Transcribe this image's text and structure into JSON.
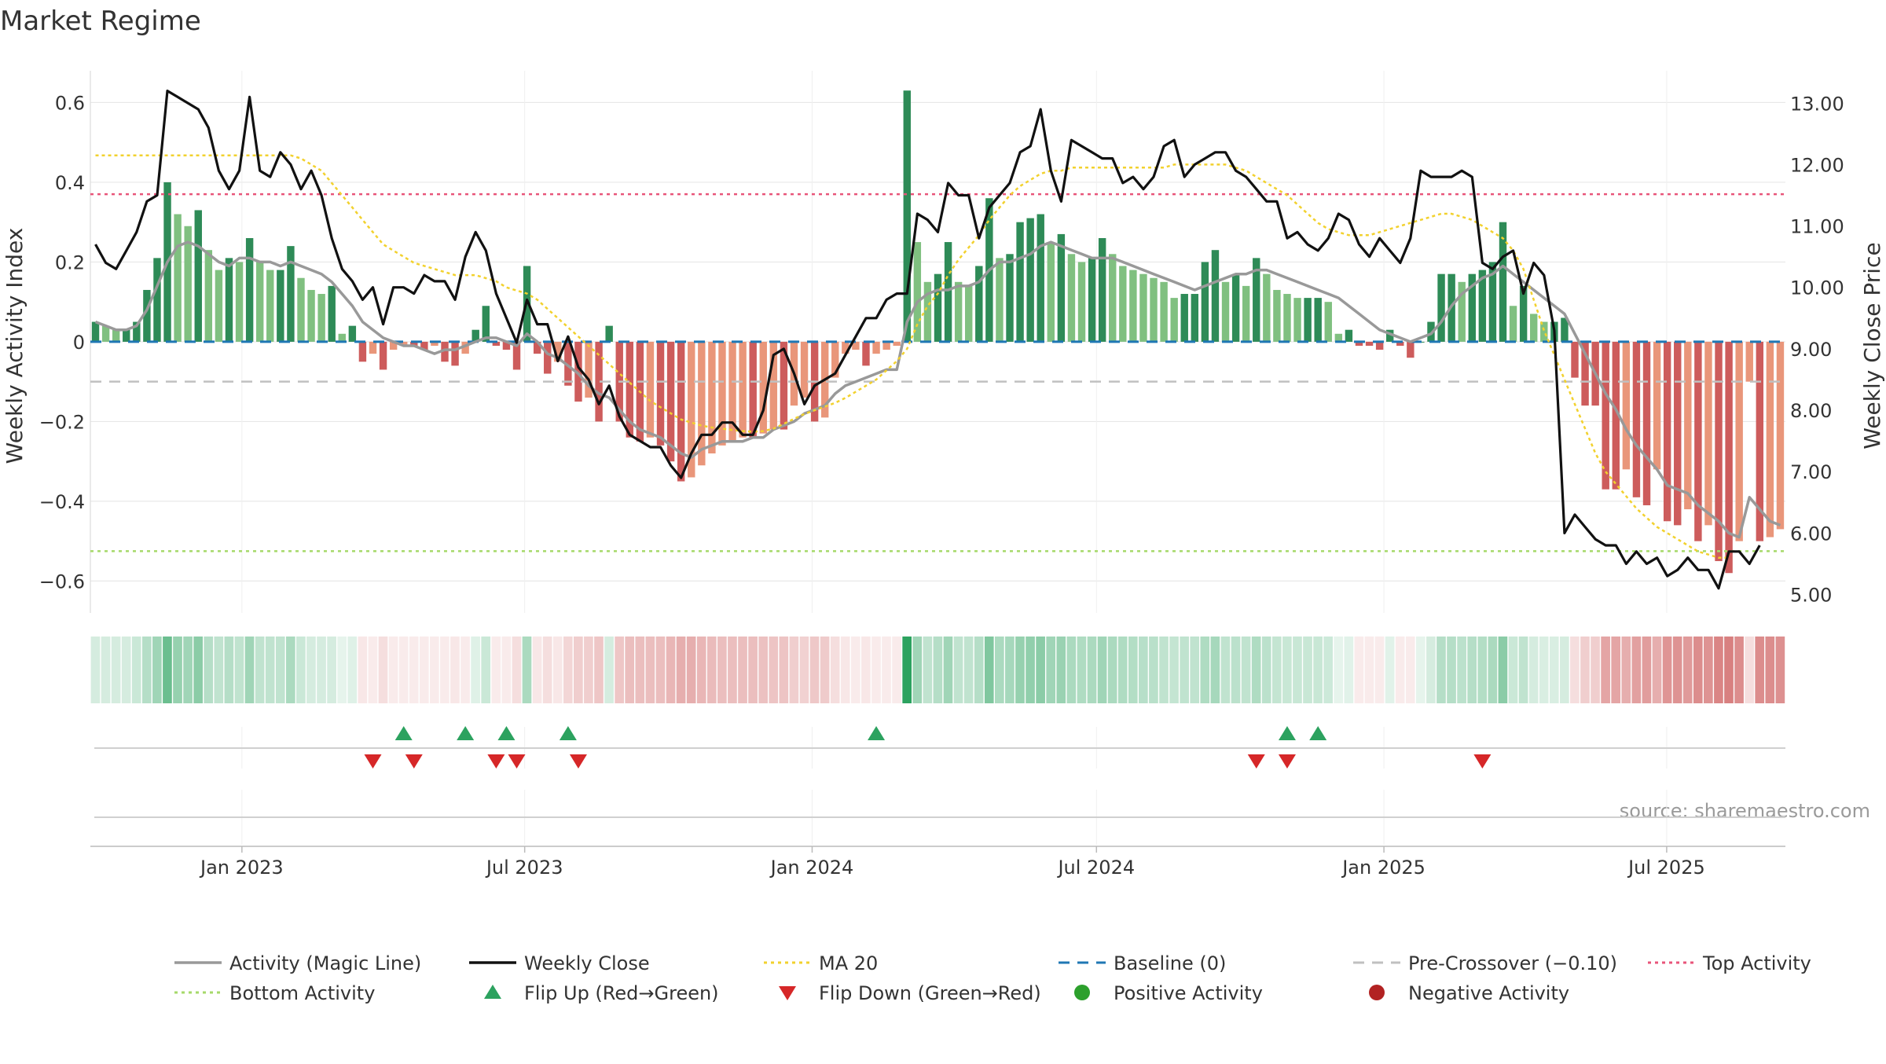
{
  "title": "Market Regime",
  "source_text": "source: sharemaestro.com",
  "colors": {
    "strong_pos": "#2e8b57",
    "weak_pos": "#80c080",
    "strong_neg": "#cd5c5c",
    "weak_neg": "#e9967a",
    "magic_line": "#999999",
    "close_line": "#111111",
    "ma20": "#f2d12e",
    "baseline": "#1f77b4",
    "precross": "#c0c0c0",
    "top": "#e8557a",
    "bottom": "#a6d96a",
    "flip_up": "#2ca25f",
    "flip_down": "#d62728",
    "pos_dot": "#2ca02c",
    "neg_dot": "#b22222"
  },
  "chart_data": {
    "type": "bar",
    "title": "Market Regime",
    "ylabel_left": "Weekly Activity Index",
    "ylabel_right": "Weekly Close Price",
    "ylim_left": [
      -0.68,
      0.66
    ],
    "ylim_right": [
      4.7,
      13.4
    ],
    "yticks_left": [
      "0.6",
      "0.4",
      "0.2",
      "0",
      "−0.2",
      "−0.4",
      "−0.6"
    ],
    "ytick_values_left": [
      0.6,
      0.4,
      0.2,
      0,
      -0.2,
      -0.4,
      -0.6
    ],
    "yticks_right": [
      "13.00",
      "12.00",
      "11.00",
      "10.00",
      "9.00",
      "8.00",
      "7.00",
      "6.00",
      "5.00"
    ],
    "ytick_values_right": [
      13,
      12,
      11,
      10,
      9,
      8,
      7,
      6,
      5
    ],
    "x_start": "2022-09-26",
    "x_end": "2025-09-15",
    "x_ticks": [
      {
        "label": "Jan 2023",
        "date": "2023-01-01"
      },
      {
        "label": "Jul 2023",
        "date": "2023-07-01"
      },
      {
        "label": "Jan 2024",
        "date": "2024-01-01"
      },
      {
        "label": "Jul 2024",
        "date": "2024-07-01"
      },
      {
        "label": "Jan 2025",
        "date": "2025-01-01"
      },
      {
        "label": "Jul 2025",
        "date": "2025-07-01"
      }
    ],
    "reference_lines": {
      "baseline": 0,
      "pre_crossover": -0.1,
      "top_activity": 0.37,
      "bottom_activity": -0.525
    },
    "activity": [
      0.05,
      0.04,
      0.03,
      0.03,
      0.05,
      0.13,
      0.21,
      0.4,
      0.32,
      0.29,
      0.33,
      0.23,
      0.18,
      0.21,
      0.2,
      0.26,
      0.2,
      0.18,
      0.18,
      0.24,
      0.16,
      0.13,
      0.12,
      0.14,
      0.02,
      0.04,
      -0.05,
      -0.03,
      -0.07,
      -0.02,
      -0.01,
      -0.01,
      -0.02,
      -0.01,
      -0.05,
      -0.06,
      -0.03,
      0.03,
      0.09,
      -0.01,
      -0.02,
      -0.07,
      0.19,
      -0.03,
      -0.08,
      -0.05,
      -0.11,
      -0.15,
      -0.14,
      -0.2,
      0.04,
      -0.2,
      -0.24,
      -0.25,
      -0.24,
      -0.26,
      -0.3,
      -0.35,
      -0.34,
      -0.31,
      -0.28,
      -0.26,
      -0.25,
      -0.24,
      -0.24,
      -0.23,
      -0.22,
      -0.22,
      -0.16,
      -0.14,
      -0.2,
      -0.19,
      -0.09,
      -0.03,
      -0.02,
      -0.06,
      -0.03,
      -0.02,
      -0.01,
      0.63,
      0.25,
      0.15,
      0.17,
      0.25,
      0.15,
      0.14,
      0.19,
      0.36,
      0.21,
      0.22,
      0.3,
      0.31,
      0.32,
      0.25,
      0.27,
      0.22,
      0.2,
      0.21,
      0.26,
      0.22,
      0.19,
      0.18,
      0.17,
      0.16,
      0.15,
      0.11,
      0.12,
      0.12,
      0.2,
      0.23,
      0.15,
      0.17,
      0.14,
      0.21,
      0.17,
      0.13,
      0.12,
      0.11,
      0.11,
      0.11,
      0.1,
      0.02,
      0.03,
      -0.01,
      -0.01,
      -0.02,
      0.03,
      -0.01,
      -0.04,
      0.0,
      0.05,
      0.17,
      0.17,
      0.15,
      0.17,
      0.18,
      0.2,
      0.3,
      0.09,
      0.14,
      0.07,
      0.05,
      0.05,
      0.06,
      -0.09,
      -0.16,
      -0.16,
      -0.37,
      -0.37,
      -0.32,
      -0.39,
      -0.41,
      -0.32,
      -0.45,
      -0.46,
      -0.42,
      -0.5,
      -0.46,
      -0.55,
      -0.58,
      -0.5,
      -0.1,
      -0.5,
      -0.49,
      -0.47
    ],
    "magic_line": [
      0.05,
      0.04,
      0.03,
      0.03,
      0.04,
      0.08,
      0.14,
      0.2,
      0.24,
      0.25,
      0.24,
      0.22,
      0.2,
      0.19,
      0.21,
      0.21,
      0.2,
      0.2,
      0.19,
      0.2,
      0.19,
      0.18,
      0.17,
      0.15,
      0.12,
      0.09,
      0.05,
      0.03,
      0.01,
      0.0,
      -0.01,
      -0.01,
      -0.02,
      -0.03,
      -0.02,
      -0.02,
      -0.01,
      0.0,
      0.01,
      0.01,
      0.0,
      -0.01,
      0.02,
      0.0,
      -0.03,
      -0.04,
      -0.06,
      -0.08,
      -0.11,
      -0.13,
      -0.14,
      -0.17,
      -0.2,
      -0.22,
      -0.23,
      -0.24,
      -0.26,
      -0.28,
      -0.29,
      -0.27,
      -0.26,
      -0.25,
      -0.25,
      -0.25,
      -0.24,
      -0.24,
      -0.22,
      -0.21,
      -0.2,
      -0.18,
      -0.17,
      -0.16,
      -0.13,
      -0.11,
      -0.1,
      -0.09,
      -0.08,
      -0.07,
      -0.07,
      0.05,
      0.1,
      0.12,
      0.13,
      0.13,
      0.14,
      0.14,
      0.15,
      0.18,
      0.2,
      0.2,
      0.21,
      0.22,
      0.24,
      0.25,
      0.24,
      0.23,
      0.22,
      0.21,
      0.21,
      0.21,
      0.2,
      0.19,
      0.18,
      0.17,
      0.16,
      0.15,
      0.14,
      0.13,
      0.14,
      0.15,
      0.16,
      0.17,
      0.17,
      0.18,
      0.18,
      0.17,
      0.16,
      0.15,
      0.14,
      0.13,
      0.12,
      0.11,
      0.09,
      0.07,
      0.05,
      0.03,
      0.02,
      0.01,
      0.0,
      0.01,
      0.02,
      0.05,
      0.09,
      0.12,
      0.14,
      0.16,
      0.17,
      0.19,
      0.17,
      0.15,
      0.13,
      0.11,
      0.09,
      0.07,
      0.02,
      -0.03,
      -0.08,
      -0.13,
      -0.17,
      -0.22,
      -0.26,
      -0.29,
      -0.32,
      -0.36,
      -0.37,
      -0.38,
      -0.41,
      -0.43,
      -0.45,
      -0.48,
      -0.49,
      -0.39,
      -0.42,
      -0.45,
      -0.46
    ],
    "weekly_close": [
      10.7,
      10.4,
      10.3,
      10.6,
      10.9,
      11.4,
      11.5,
      13.2,
      13.1,
      13.0,
      12.9,
      12.6,
      11.9,
      11.6,
      11.9,
      13.1,
      11.9,
      11.8,
      12.2,
      12.0,
      11.6,
      11.9,
      11.5,
      10.8,
      10.3,
      10.1,
      9.8,
      10.0,
      9.4,
      10.0,
      10.0,
      9.9,
      10.2,
      10.1,
      10.1,
      9.8,
      10.5,
      10.9,
      10.6,
      9.9,
      9.5,
      9.1,
      9.8,
      9.4,
      9.4,
      8.8,
      9.2,
      8.7,
      8.5,
      8.1,
      8.4,
      7.9,
      7.6,
      7.5,
      7.4,
      7.4,
      7.1,
      6.9,
      7.3,
      7.6,
      7.6,
      7.8,
      7.8,
      7.6,
      7.6,
      8.0,
      8.9,
      9.0,
      8.6,
      8.1,
      8.4,
      8.5,
      8.6,
      8.9,
      9.2,
      9.5,
      9.5,
      9.8,
      9.9,
      9.9,
      11.2,
      11.1,
      10.9,
      11.7,
      11.5,
      11.5,
      10.8,
      11.3,
      11.5,
      11.7,
      12.2,
      12.3,
      12.9,
      11.9,
      11.4,
      12.4,
      12.3,
      12.2,
      12.1,
      12.1,
      11.7,
      11.8,
      11.6,
      11.8,
      12.3,
      12.4,
      11.8,
      12.0,
      12.1,
      12.2,
      12.2,
      11.9,
      11.8,
      11.6,
      11.4,
      11.4,
      10.8,
      10.9,
      10.7,
      10.6,
      10.8,
      11.2,
      11.1,
      10.7,
      10.5,
      10.8,
      10.6,
      10.4,
      10.8,
      11.9,
      11.8,
      11.8,
      11.8,
      11.9,
      11.8,
      10.4,
      10.3,
      10.5,
      10.6,
      9.9,
      10.4,
      10.2,
      9.3,
      6.0,
      6.3,
      6.1,
      5.9,
      5.8,
      5.8,
      5.5,
      5.7,
      5.5,
      5.6,
      5.3,
      5.4,
      5.6,
      5.4,
      5.4,
      5.1,
      5.7,
      5.7,
      5.5,
      5.8
    ],
    "ma20": [
      12.15,
      12.15,
      12.15,
      12.15,
      12.15,
      12.15,
      12.15,
      12.15,
      12.15,
      12.15,
      12.15,
      12.15,
      12.15,
      12.15,
      12.15,
      12.15,
      12.15,
      12.15,
      12.15,
      12.15,
      12.1,
      12.0,
      11.9,
      11.7,
      11.5,
      11.3,
      11.1,
      10.9,
      10.7,
      10.6,
      10.5,
      10.4,
      10.35,
      10.3,
      10.25,
      10.2,
      10.2,
      10.2,
      10.15,
      10.1,
      10.0,
      9.95,
      9.9,
      9.8,
      9.65,
      9.5,
      9.35,
      9.2,
      9.05,
      8.9,
      8.75,
      8.6,
      8.45,
      8.3,
      8.15,
      8.05,
      7.95,
      7.85,
      7.8,
      7.75,
      7.72,
      7.7,
      7.68,
      7.66,
      7.65,
      7.66,
      7.7,
      7.78,
      7.86,
      7.94,
      8.0,
      8.06,
      8.12,
      8.2,
      8.3,
      8.4,
      8.5,
      8.65,
      8.8,
      9.0,
      9.4,
      9.7,
      9.9,
      10.2,
      10.45,
      10.65,
      10.85,
      11.1,
      11.3,
      11.5,
      11.65,
      11.75,
      11.85,
      11.9,
      11.9,
      11.95,
      11.95,
      11.95,
      11.95,
      11.95,
      11.95,
      11.95,
      11.95,
      11.95,
      11.95,
      12.0,
      12.0,
      12.0,
      12.0,
      12.0,
      12.0,
      11.95,
      11.9,
      11.8,
      11.7,
      11.6,
      11.5,
      11.35,
      11.2,
      11.05,
      10.95,
      10.9,
      10.85,
      10.85,
      10.85,
      10.9,
      10.95,
      11.0,
      11.05,
      11.1,
      11.15,
      11.2,
      11.2,
      11.15,
      11.1,
      11.0,
      10.9,
      10.8,
      10.6,
      10.3,
      9.8,
      9.3,
      8.9,
      8.5,
      8.1,
      7.7,
      7.3,
      7.0,
      6.8,
      6.6,
      6.4,
      6.25,
      6.1,
      6.0,
      5.9,
      5.8,
      5.7,
      5.65,
      5.6,
      5.6
    ],
    "strip_intensity": [
      0.2,
      0.2,
      0.2,
      0.2,
      0.25,
      0.35,
      0.45,
      0.7,
      0.5,
      0.45,
      0.55,
      0.35,
      0.3,
      0.35,
      0.3,
      0.45,
      0.3,
      0.3,
      0.3,
      0.4,
      0.25,
      0.2,
      0.2,
      0.2,
      0.1,
      0.15,
      0.15,
      0.12,
      0.2,
      0.1,
      0.1,
      0.1,
      0.1,
      0.1,
      0.12,
      0.15,
      0.12,
      0.15,
      0.25,
      0.1,
      0.12,
      0.2,
      0.4,
      0.15,
      0.2,
      0.15,
      0.25,
      0.3,
      0.3,
      0.35,
      0.2,
      0.35,
      0.4,
      0.4,
      0.4,
      0.4,
      0.45,
      0.5,
      0.5,
      0.45,
      0.42,
      0.4,
      0.4,
      0.4,
      0.4,
      0.38,
      0.36,
      0.36,
      0.3,
      0.28,
      0.34,
      0.32,
      0.2,
      0.15,
      0.12,
      0.15,
      0.12,
      0.1,
      0.1,
      1.0,
      0.45,
      0.3,
      0.35,
      0.45,
      0.3,
      0.3,
      0.35,
      0.6,
      0.4,
      0.42,
      0.5,
      0.52,
      0.55,
      0.45,
      0.48,
      0.4,
      0.38,
      0.4,
      0.45,
      0.4,
      0.38,
      0.36,
      0.34,
      0.33,
      0.3,
      0.28,
      0.3,
      0.3,
      0.38,
      0.42,
      0.3,
      0.32,
      0.3,
      0.38,
      0.32,
      0.28,
      0.26,
      0.26,
      0.26,
      0.26,
      0.24,
      0.12,
      0.14,
      0.1,
      0.1,
      0.12,
      0.14,
      0.1,
      0.12,
      0.12,
      0.2,
      0.35,
      0.35,
      0.32,
      0.35,
      0.36,
      0.4,
      0.55,
      0.25,
      0.3,
      0.2,
      0.18,
      0.18,
      0.2,
      0.2,
      0.3,
      0.3,
      0.55,
      0.55,
      0.5,
      0.58,
      0.6,
      0.5,
      0.65,
      0.66,
      0.62,
      0.7,
      0.66,
      0.75,
      0.78,
      0.7,
      0.2,
      0.7,
      0.7,
      0.68
    ],
    "flip_up": [
      {
        "date": "2023-04-24"
      },
      {
        "date": "2023-06-05"
      },
      {
        "date": "2023-07-03"
      },
      {
        "date": "2023-08-14"
      },
      {
        "date": "2024-03-11"
      },
      {
        "date": "2024-12-16"
      },
      {
        "date": "2025-01-06"
      }
    ],
    "flip_down": [
      {
        "date": "2023-04-03"
      },
      {
        "date": "2023-05-01"
      },
      {
        "date": "2023-06-26"
      },
      {
        "date": "2023-07-10"
      },
      {
        "date": "2023-08-21"
      },
      {
        "date": "2024-11-25"
      },
      {
        "date": "2024-12-16"
      },
      {
        "date": "2025-04-28"
      }
    ]
  },
  "legend": [
    {
      "label": "Activity (Magic Line)",
      "kind": "line",
      "color": "#999999"
    },
    {
      "label": "Weekly Close",
      "kind": "line",
      "color": "#111111"
    },
    {
      "label": "MA 20",
      "kind": "dotted",
      "color": "#f2d12e"
    },
    {
      "label": "Baseline (0)",
      "kind": "dashed",
      "color": "#1f77b4"
    },
    {
      "label": "Pre-Crossover (−0.10)",
      "kind": "dashed",
      "color": "#c0c0c0"
    },
    {
      "label": "Top Activity",
      "kind": "dotted",
      "color": "#e8557a"
    },
    {
      "label": "Bottom Activity",
      "kind": "dotted",
      "color": "#a6d96a"
    },
    {
      "label": "Flip Up (Red→Green)",
      "kind": "tri-up",
      "color": "#2ca25f"
    },
    {
      "label": "Flip Down (Green→Red)",
      "kind": "tri-down",
      "color": "#d62728"
    },
    {
      "label": "Positive Activity",
      "kind": "dot",
      "color": "#2ca02c"
    },
    {
      "label": "Negative Activity",
      "kind": "dot",
      "color": "#b22222"
    }
  ]
}
